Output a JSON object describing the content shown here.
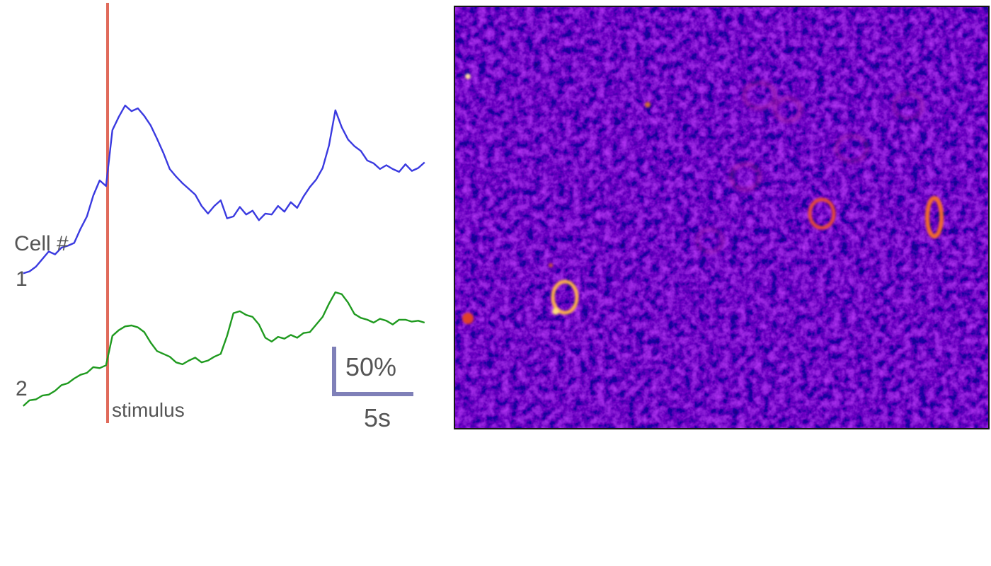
{
  "labels": {
    "cell_header": "Cell #",
    "cell_1": "1",
    "cell_2": "2",
    "stimulus": "stimulus",
    "scale_y": "50%",
    "scale_x": "5s"
  },
  "colors": {
    "cell_1": "#3a3ae0",
    "cell_2": "#1f9a1f",
    "stimulus": "#e06a5a",
    "scale_bar": "#7f80b8",
    "image_background": "#3a12b0",
    "image_highlight": "#ffb347"
  },
  "chart_data": {
    "type": "line",
    "title": "",
    "xlabel": "",
    "ylabel": "",
    "x_unit": "s",
    "y_unit": "dF/F %",
    "x_range": [
      -5.3,
      20
    ],
    "stimulus_time": 0,
    "scale_bars": {
      "x": 5,
      "x_label": "5s",
      "y": 50,
      "y_label": "50%"
    },
    "series": [
      {
        "name": "1",
        "x": [
          -5.3,
          -4.9,
          -4.5,
          -4.1,
          -3.7,
          -3.3,
          -2.9,
          -2.5,
          -2.1,
          -1.7,
          -1.3,
          -0.9,
          -0.5,
          -0.1,
          0.3,
          0.7,
          1.1,
          1.5,
          1.9,
          2.3,
          2.7,
          3.1,
          3.5,
          3.9,
          4.3,
          4.7,
          5.1,
          5.5,
          5.9,
          6.3,
          6.7,
          7.1,
          7.5,
          7.9,
          8.3,
          8.7,
          9.1,
          9.5,
          9.9,
          10.3,
          10.7,
          11.1,
          11.5,
          11.9,
          12.3,
          12.7,
          13.1,
          13.5,
          13.9,
          14.3,
          14.7,
          15.1,
          15.5,
          15.9,
          16.3,
          16.7,
          17.1,
          17.5,
          17.9,
          18.3,
          18.7,
          19.1,
          19.5,
          19.9
        ],
        "values": [
          -42,
          -40,
          -35,
          -27,
          -19,
          -22,
          -15,
          -13,
          -10,
          5,
          18,
          40,
          56,
          50,
          109,
          123,
          135,
          129,
          132,
          124,
          114,
          100,
          85,
          68,
          60,
          53,
          47,
          41,
          29,
          21,
          29,
          35,
          16,
          18,
          28,
          20,
          24,
          14,
          21,
          20,
          29,
          23,
          33,
          27,
          39,
          49,
          57,
          69,
          93,
          130,
          112,
          99,
          92,
          87,
          77,
          74,
          68,
          72,
          68,
          65,
          73,
          66,
          69,
          75
        ]
      },
      {
        "name": "2",
        "x": [
          -5.3,
          -4.9,
          -4.5,
          -4.1,
          -3.7,
          -3.3,
          -2.9,
          -2.5,
          -2.1,
          -1.7,
          -1.3,
          -0.9,
          -0.5,
          -0.1,
          0.3,
          0.7,
          1.1,
          1.5,
          1.9,
          2.3,
          2.7,
          3.1,
          3.5,
          3.9,
          4.3,
          4.7,
          5.1,
          5.5,
          5.9,
          6.3,
          6.7,
          7.1,
          7.5,
          7.9,
          8.3,
          8.7,
          9.1,
          9.5,
          9.9,
          10.3,
          10.7,
          11.1,
          11.5,
          11.9,
          12.3,
          12.7,
          13.1,
          13.5,
          13.9,
          14.3,
          14.7,
          15.1,
          15.5,
          15.9,
          16.3,
          16.7,
          17.1,
          17.5,
          17.9,
          18.3,
          18.7,
          19.1,
          19.5,
          19.9
        ],
        "values": [
          -182,
          -176,
          -175,
          -171,
          -170,
          -166,
          -160,
          -158,
          -153,
          -149,
          -147,
          -141,
          -142,
          -139,
          -108,
          -102,
          -98,
          -97,
          -99,
          -104,
          -115,
          -124,
          -127,
          -130,
          -136,
          -138,
          -134,
          -131,
          -136,
          -134,
          -130,
          -127,
          -108,
          -84,
          -82,
          -86,
          -88,
          -96,
          -110,
          -114,
          -109,
          -111,
          -107,
          -110,
          -105,
          -104,
          -96,
          -88,
          -74,
          -62,
          -64,
          -73,
          -85,
          -89,
          -91,
          -94,
          -90,
          -92,
          -96,
          -91,
          -91,
          -93,
          -92,
          -94
        ]
      }
    ]
  }
}
